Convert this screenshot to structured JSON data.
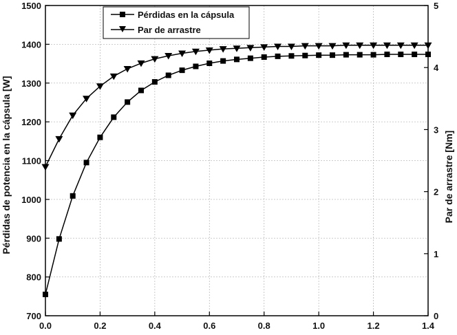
{
  "chart_data": {
    "type": "line",
    "x": [
      0.0,
      0.05,
      0.1,
      0.15,
      0.2,
      0.25,
      0.3,
      0.35,
      0.4,
      0.45,
      0.5,
      0.55,
      0.6,
      0.65,
      0.7,
      0.75,
      0.8,
      0.85,
      0.9,
      0.95,
      1.0,
      1.05,
      1.1,
      1.15,
      1.2,
      1.25,
      1.3,
      1.35,
      1.4
    ],
    "xlim": [
      0,
      1.4
    ],
    "xticks": [
      "0.0",
      "0.2",
      "0.4",
      "0.6",
      "0.8",
      "1.0",
      "1.2",
      "1.4"
    ],
    "ylabel": "Pérdidas de potencia en la cápsula [W]",
    "ylim": [
      700,
      1500
    ],
    "yticks": [
      "700",
      "800",
      "900",
      "1000",
      "1100",
      "1200",
      "1300",
      "1400",
      "1500"
    ],
    "y2label": "Par de arrastre [Nm]",
    "y2lim": [
      0,
      5
    ],
    "y2ticks": [
      "0",
      "1",
      "2",
      "3",
      "4",
      "5"
    ],
    "grid": true,
    "legend_position": "top-center",
    "series": [
      {
        "name": "Pérdidas en la cápsula",
        "axis": "left",
        "marker": "square",
        "values": [
          755,
          898,
          1009,
          1095,
          1160,
          1212,
          1251,
          1281,
          1303,
          1320,
          1333,
          1343,
          1351,
          1357,
          1361,
          1364,
          1367,
          1369,
          1370,
          1371,
          1372,
          1372,
          1373,
          1373,
          1373,
          1374,
          1374,
          1374,
          1374
        ]
      },
      {
        "name": "Par de arrastre",
        "axis": "right",
        "marker": "triangle-down",
        "values": [
          2.4,
          2.85,
          3.23,
          3.5,
          3.7,
          3.86,
          3.98,
          4.07,
          4.14,
          4.19,
          4.23,
          4.26,
          4.28,
          4.3,
          4.31,
          4.32,
          4.33,
          4.34,
          4.34,
          4.35,
          4.35,
          4.35,
          4.36,
          4.36,
          4.36,
          4.36,
          4.36,
          4.36,
          4.36
        ]
      }
    ]
  }
}
